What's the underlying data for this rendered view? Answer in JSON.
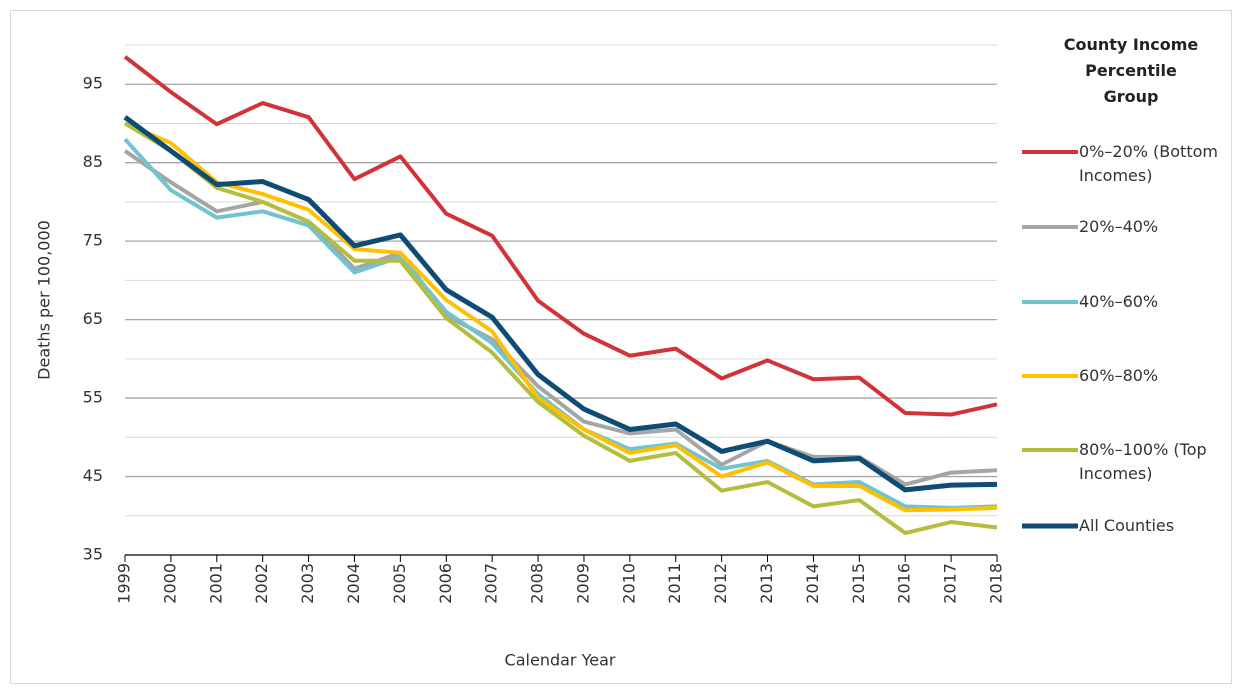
{
  "chart_data": {
    "type": "line",
    "y_label": "Deaths per 100,000",
    "x_label": "Calendar Year",
    "legend_title": "County Income Percentile Group",
    "legend": "right",
    "grid": true,
    "categories": [
      "1999",
      "2000",
      "2001",
      "2002",
      "2003",
      "2004",
      "2005",
      "2006",
      "2007",
      "2008",
      "2009",
      "2010",
      "2011",
      "2012",
      "2013",
      "2014",
      "2015",
      "2016",
      "2017",
      "2018"
    ],
    "ylim": [
      35,
      100
    ],
    "yticks": [
      35,
      45,
      55,
      65,
      75,
      85,
      95
    ],
    "minor_yticks": [
      40,
      50,
      60,
      70,
      80,
      90,
      100
    ],
    "series": [
      {
        "name": "0%–20% (Bottom Incomes)",
        "color": "#d13438",
        "values": [
          98.5,
          94,
          89.9,
          92.6,
          90.8,
          82.9,
          85.8,
          78.5,
          75.7,
          67.4,
          63.2,
          60.4,
          61.3,
          57.5,
          59.8,
          57.4,
          57.6,
          53.1,
          52.9,
          54.2
        ]
      },
      {
        "name": "20%–40%",
        "color": "#a5a5a5",
        "values": [
          86.5,
          82.5,
          78.8,
          80,
          77.5,
          71.5,
          73.5,
          65.5,
          62.5,
          56.5,
          52,
          50.5,
          51,
          46.5,
          49.5,
          47.5,
          47.5,
          44,
          45.5,
          45.8
        ]
      },
      {
        "name": "40%–60%",
        "color": "#70c4d0",
        "values": [
          88,
          81.5,
          78,
          78.8,
          77,
          71,
          73,
          66,
          62,
          55.5,
          51,
          48.5,
          49.2,
          46,
          47,
          44,
          44.3,
          41.2,
          41,
          41.2
        ]
      },
      {
        "name": "60%–80%",
        "color": "#ffc000",
        "values": [
          90,
          87.5,
          82.5,
          81,
          79,
          74,
          73.5,
          67.5,
          63.5,
          55,
          51,
          48,
          49,
          45,
          46.8,
          43.8,
          43.8,
          40.7,
          40.8,
          41
        ]
      },
      {
        "name": "80%–100% (Top Incomes)",
        "color": "#b5bd3c",
        "values": [
          90,
          86.5,
          81.8,
          80,
          77.5,
          72.5,
          72.5,
          65.2,
          60.8,
          54.5,
          50.2,
          47,
          48,
          43.2,
          44.3,
          41.2,
          42,
          37.8,
          39.2,
          38.5
        ]
      },
      {
        "name": "All Counties",
        "color": "#0e4c75",
        "values": [
          90.8,
          86.5,
          82.2,
          82.6,
          80.3,
          74.4,
          75.8,
          68.8,
          65.3,
          58,
          53.6,
          51,
          51.7,
          48.2,
          49.5,
          47,
          47.3,
          43.3,
          43.9,
          44
        ]
      }
    ]
  }
}
